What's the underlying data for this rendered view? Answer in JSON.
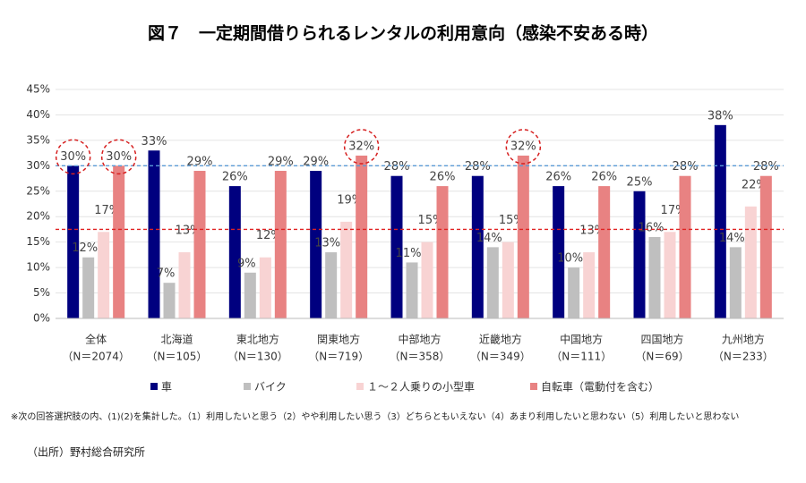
{
  "chart_data": {
    "type": "bar",
    "title": "図７　一定期間借りられるレンタルの利用意向（感染不安ある時）",
    "categories": [
      "全体",
      "北海道",
      "東北地方",
      "関東地方",
      "中部地方",
      "近畿地方",
      "中国地方",
      "四国地方",
      "九州地方"
    ],
    "category_notes": [
      "（N＝2074）",
      "（N＝105）",
      "（N＝130）",
      "（N＝719）",
      "（N＝358）",
      "（N＝349）",
      "（N＝111）",
      "（N＝69）",
      "（N＝233）"
    ],
    "series": [
      {
        "name": "車",
        "color": "#00007f",
        "values": [
          30,
          33,
          26,
          29,
          28,
          28,
          26,
          25,
          38
        ],
        "value_labels": [
          "30%",
          "33%",
          "26%",
          "29%",
          "28%",
          "28%",
          "26%",
          "25%",
          "38%"
        ]
      },
      {
        "name": "バイク",
        "color": "#bfbfbf",
        "values": [
          12,
          7,
          9,
          13,
          11,
          14,
          10,
          16,
          14
        ],
        "value_labels": [
          "12%",
          "7%",
          "9%",
          "13%",
          "11%",
          "14%",
          "10%",
          "16%",
          "14%"
        ]
      },
      {
        "name": "１～２人乗りの小型車",
        "color": "#f8d3d3",
        "values": [
          17,
          13,
          12,
          19,
          15,
          15,
          13,
          17,
          22
        ],
        "value_labels": [
          "17%",
          "13%",
          "12%",
          "19%",
          "15%",
          "15%",
          "13%",
          "17%",
          "22%"
        ]
      },
      {
        "name": "自転車（電動付を含む）",
        "color": "#e88282",
        "values": [
          30,
          29,
          29,
          32,
          26,
          32,
          26,
          28,
          28
        ],
        "value_labels": [
          "30%",
          "29%",
          "29%",
          "32%",
          "26%",
          "32%",
          "26%",
          "28%",
          "28%"
        ]
      }
    ],
    "ylim": [
      0,
      45
    ],
    "yticks": [
      {
        "value": 0,
        "label": "0%"
      },
      {
        "value": 5,
        "label": "5%"
      },
      {
        "value": 10,
        "label": "10%"
      },
      {
        "value": 15,
        "label": "15%"
      },
      {
        "value": 20,
        "label": "20%"
      },
      {
        "value": 25,
        "label": "25%"
      },
      {
        "value": 30,
        "label": "30%"
      },
      {
        "value": 35,
        "label": "35%"
      },
      {
        "value": 40,
        "label": "40%"
      },
      {
        "value": 45,
        "label": "45%"
      }
    ],
    "grid": true,
    "reference_lines": [
      {
        "value": 30,
        "color": "#5b9bd5"
      },
      {
        "value": 17.5,
        "color": "#e02020"
      }
    ],
    "highlights": [
      [
        0,
        0
      ],
      [
        3,
        0
      ],
      [
        3,
        3
      ],
      [
        3,
        5
      ]
    ],
    "footnote": "※次の回答選択肢の内、(1)(2)を集計した。（1）利用したいと思う（2）やや利用したい思う（3）どちらともいえない（4）あまり利用したいと思わない（5）利用したいと思わない",
    "source": "（出所）野村総合研究所"
  }
}
